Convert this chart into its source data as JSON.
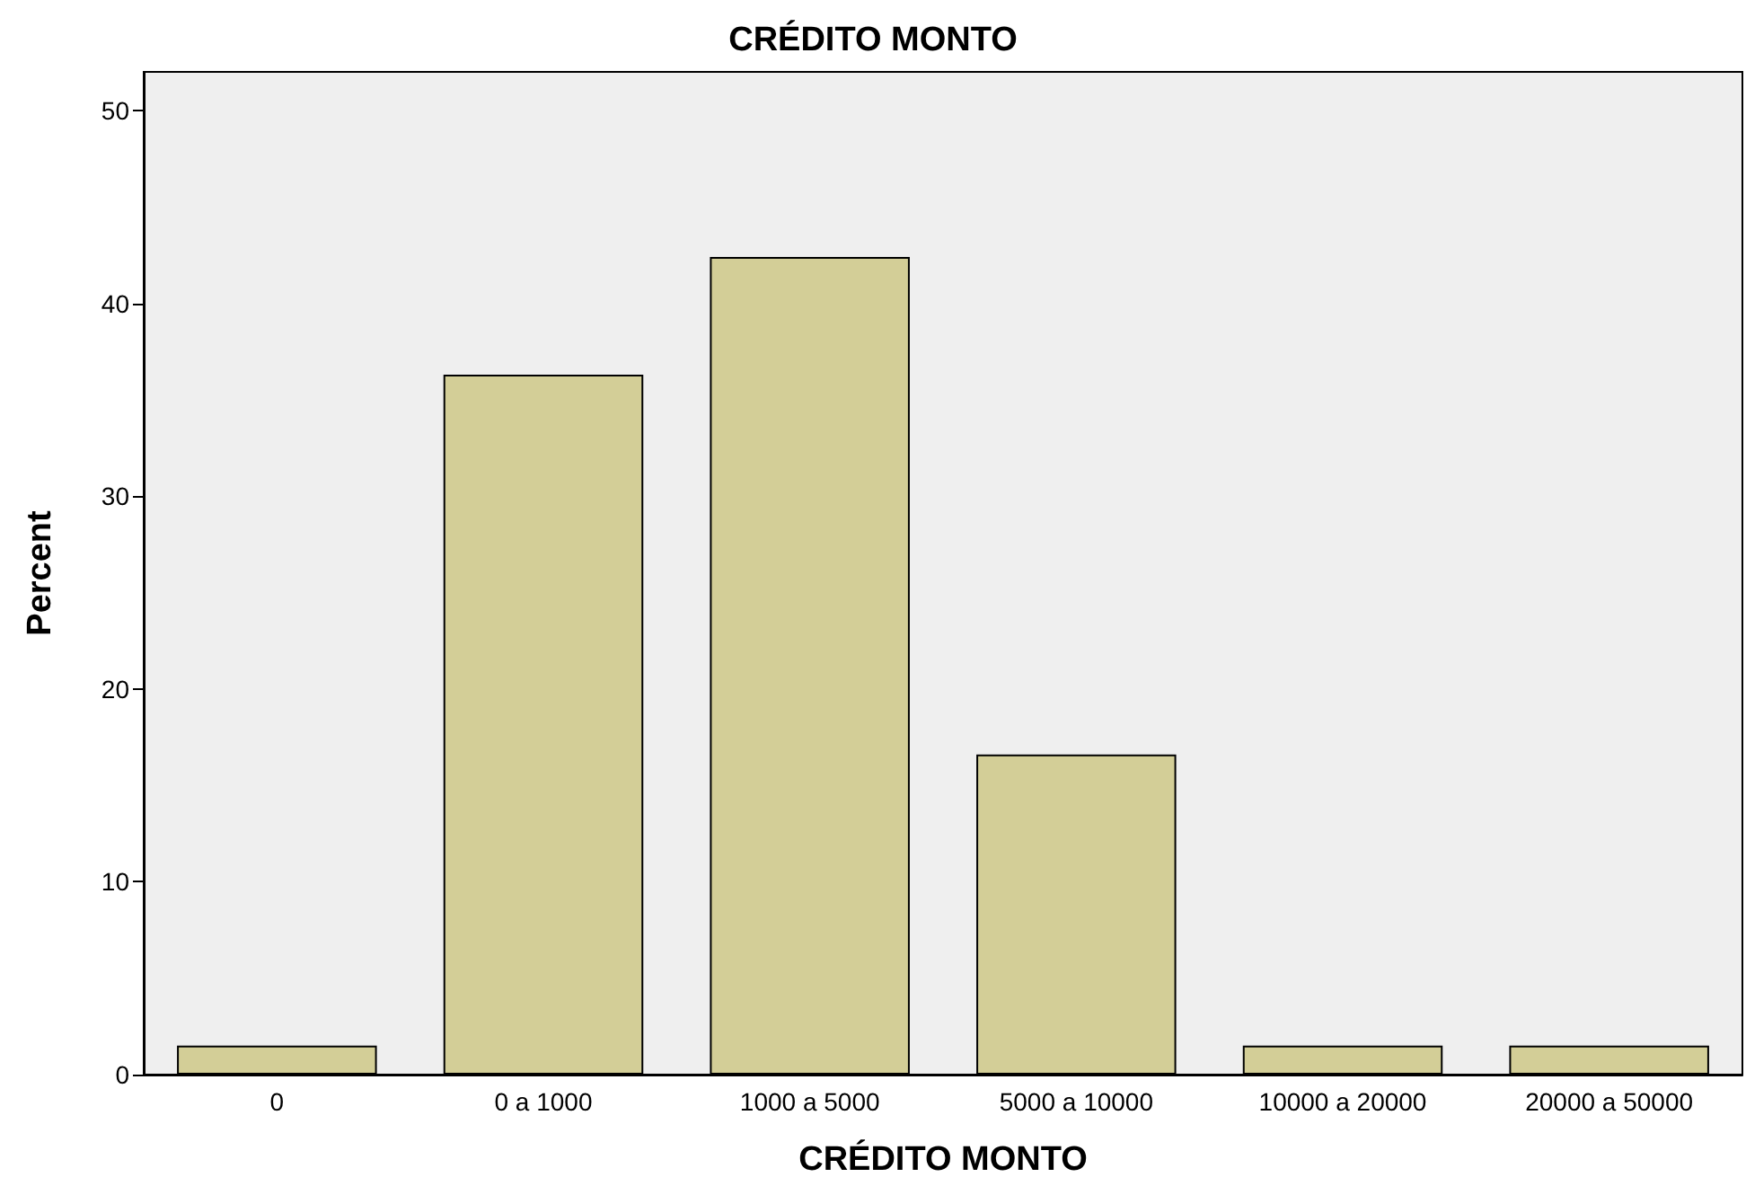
{
  "chart_data": {
    "type": "bar",
    "title": "CRÉDITO MONTO",
    "xlabel": "CRÉDITO MONTO",
    "ylabel": "Percent",
    "categories": [
      "0",
      "0 a 1000",
      "1000 a 5000",
      "5000 a 10000",
      "10000 a 20000",
      "20000 a 50000"
    ],
    "values": [
      1.5,
      36.3,
      42.4,
      16.6,
      1.5,
      1.5
    ],
    "color": "#d3ce97",
    "ylim": [
      0,
      52
    ],
    "yticks": [
      0,
      10,
      20,
      30,
      40,
      50
    ],
    "grid": false
  }
}
